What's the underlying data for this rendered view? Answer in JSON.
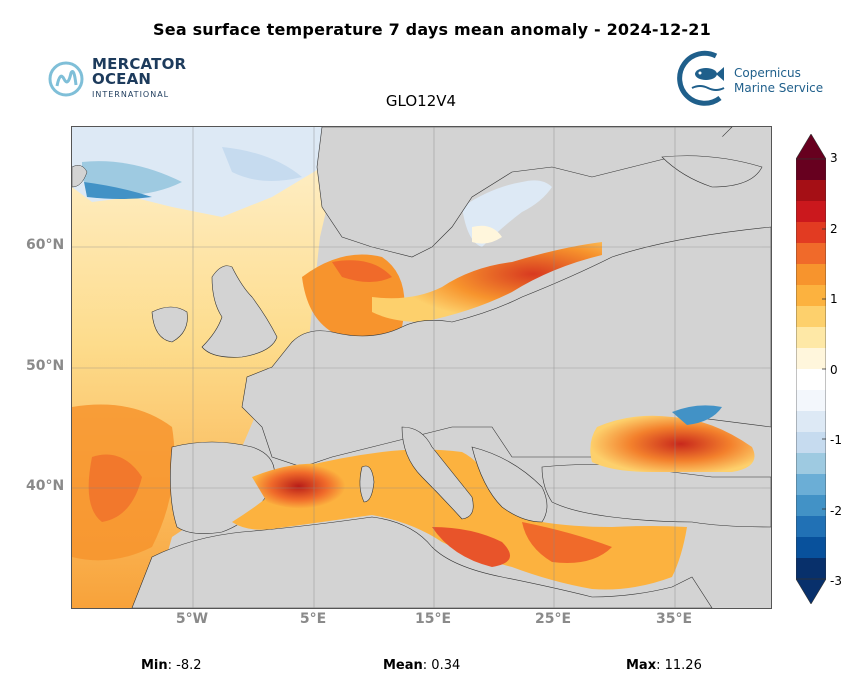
{
  "header": {
    "title": "Sea surface temperature 7 days mean anomaly - 2024-12-21",
    "subtitle": "GLO12V4"
  },
  "logos": {
    "mercator": {
      "line1": "MERCATOR",
      "line2": "OCEAN",
      "line3": "INTERNATIONAL"
    },
    "copernicus": {
      "line1": "Copernicus",
      "line2": "Marine Service"
    }
  },
  "map": {
    "lat_labels": [
      "60°N",
      "50°N",
      "40°N"
    ],
    "lon_labels": [
      "5°W",
      "5°E",
      "15°E",
      "25°E",
      "35°E"
    ],
    "land_color": "#d3d3d3"
  },
  "colorbar": {
    "ticks": [
      "3",
      "2",
      "1",
      "0",
      "-1",
      "-2",
      "-3"
    ],
    "colors": [
      "#67001f",
      "#a50f15",
      "#cb181d",
      "#e23b22",
      "#f06a2a",
      "#f7942d",
      "#fcb23f",
      "#fdd06c",
      "#fee8a6",
      "#fff6dc",
      "#ffffff",
      "#f3f7fc",
      "#dde9f5",
      "#c6dbef",
      "#9ecae1",
      "#6baed6",
      "#4292c6",
      "#2171b5",
      "#08519c",
      "#08306b"
    ]
  },
  "stats": {
    "min_label": "Min",
    "min_value": ": -8.2",
    "mean_label": "Mean",
    "mean_value": ": 0.34",
    "max_label": "Max",
    "max_value": ": 11.26"
  }
}
